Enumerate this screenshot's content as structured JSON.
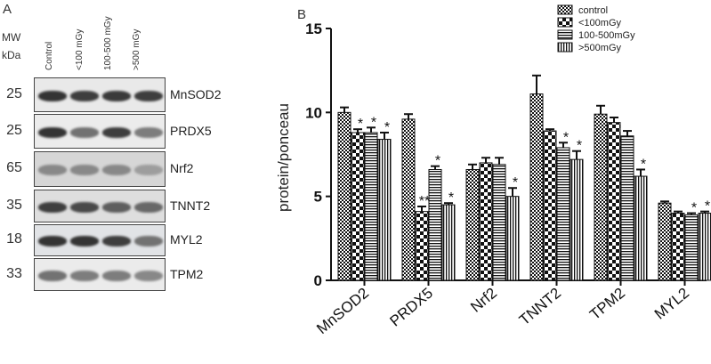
{
  "panel_a": {
    "letter": "A",
    "mw_label_line1": "MW",
    "mw_label_line2": "kDa",
    "lanes": [
      "Control",
      "<100 mGy",
      "100-500 mGy",
      ">500 mGy"
    ],
    "rows": [
      {
        "mw": "25",
        "protein": "MnSOD2",
        "intensity": [
          0.85,
          0.8,
          0.82,
          0.8
        ]
      },
      {
        "mw": "25",
        "protein": "PRDX5",
        "intensity": [
          0.85,
          0.55,
          0.8,
          0.5
        ]
      },
      {
        "mw": "65",
        "protein": "Nrf2",
        "intensity": [
          0.45,
          0.45,
          0.45,
          0.35
        ]
      },
      {
        "mw": "35",
        "protein": "TNNT2",
        "intensity": [
          0.8,
          0.75,
          0.65,
          0.6
        ]
      },
      {
        "mw": "18",
        "protein": "MYL2",
        "intensity": [
          0.85,
          0.85,
          0.8,
          0.55
        ]
      },
      {
        "mw": "33",
        "protein": "TPM2",
        "intensity": [
          0.55,
          0.5,
          0.5,
          0.45
        ]
      }
    ]
  },
  "panel_b": {
    "letter": "B"
  },
  "chart_data": {
    "type": "bar",
    "title": "",
    "xlabel": "",
    "ylabel": "protein/ponceau",
    "ylim": [
      0,
      15
    ],
    "yticks": [
      "0",
      "5",
      "10",
      "15"
    ],
    "grid": false,
    "legend_position": "top-right",
    "categories": [
      "MnSOD2",
      "PRDX5",
      "Nrf2",
      "TNNT2",
      "TPM2",
      "MYL2"
    ],
    "series": [
      {
        "name": "control",
        "pattern": "checker",
        "values": [
          10.0,
          9.6,
          6.6,
          11.1,
          9.9,
          4.6
        ],
        "errors": [
          0.3,
          0.3,
          0.3,
          1.1,
          0.5,
          0.1
        ],
        "sig": [
          "",
          "",
          "",
          "",
          "",
          ""
        ]
      },
      {
        "name": "<100mGy",
        "pattern": "bigchecker",
        "values": [
          8.8,
          4.1,
          7.0,
          8.9,
          9.4,
          4.0
        ],
        "errors": [
          0.2,
          0.3,
          0.3,
          0.1,
          0.3,
          0.1
        ],
        "sig": [
          "*",
          "**",
          "",
          "",
          "",
          ""
        ]
      },
      {
        "name": "100-500mGy",
        "pattern": "hstripes",
        "values": [
          8.8,
          6.6,
          6.9,
          7.9,
          8.6,
          3.9
        ],
        "errors": [
          0.3,
          0.2,
          0.4,
          0.3,
          0.3,
          0.1
        ],
        "sig": [
          "*",
          "*",
          "",
          "*",
          "",
          "*"
        ]
      },
      {
        "name": ">500mGy",
        "pattern": "vstripes",
        "values": [
          8.4,
          4.5,
          5.0,
          7.2,
          6.2,
          4.0
        ],
        "errors": [
          0.4,
          0.1,
          0.5,
          0.5,
          0.4,
          0.1
        ],
        "sig": [
          "*",
          "*",
          "*",
          "*",
          "*",
          "*"
        ]
      }
    ]
  }
}
